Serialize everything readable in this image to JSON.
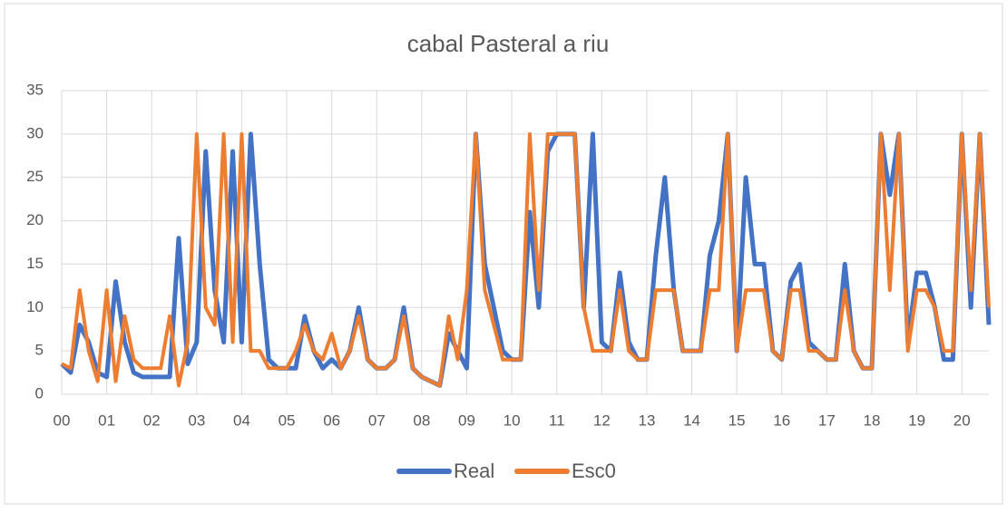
{
  "chart_data": {
    "type": "line",
    "title": "cabal Pasteral a riu",
    "x": [
      0,
      0.2,
      0.4,
      0.6,
      0.8,
      1,
      1.2,
      1.4,
      1.6,
      1.8,
      2,
      2.2,
      2.4,
      2.6,
      2.8,
      3,
      3.2,
      3.4,
      3.6,
      3.8,
      4,
      4.2,
      4.4,
      4.6,
      4.8,
      5,
      5.2,
      5.4,
      5.6,
      5.8,
      6,
      6.2,
      6.4,
      6.6,
      6.8,
      7,
      7.2,
      7.4,
      7.6,
      7.8,
      8,
      8.2,
      8.4,
      8.6,
      8.8,
      9,
      9.2,
      9.4,
      9.6,
      9.8,
      10,
      10.2,
      10.4,
      10.6,
      10.8,
      11,
      11.2,
      11.4,
      11.6,
      11.8,
      12,
      12.2,
      12.4,
      12.6,
      12.8,
      13,
      13.2,
      13.4,
      13.6,
      13.8,
      14,
      14.2,
      14.4,
      14.6,
      14.8,
      15,
      15.2,
      15.4,
      15.6,
      15.8,
      16,
      16.2,
      16.4,
      16.6,
      16.8,
      17,
      17.2,
      17.4,
      17.6,
      17.8,
      18,
      18.2,
      18.4,
      18.6,
      18.8,
      19,
      19.2,
      19.4,
      19.6,
      19.8,
      20,
      20.2,
      20.4,
      20.6
    ],
    "series": [
      {
        "name": "Real",
        "color": "#4472c4",
        "values": [
          3.5,
          2.5,
          8,
          6,
          2.5,
          2,
          13,
          6,
          2.5,
          2,
          2,
          2,
          2,
          18,
          3.5,
          6,
          28,
          12,
          6,
          28,
          6,
          30,
          15,
          4,
          3,
          3,
          3,
          9,
          5,
          3,
          4,
          3,
          5,
          10,
          4,
          3,
          3,
          4,
          10,
          3,
          2,
          1.5,
          1,
          7,
          5,
          3,
          30,
          15,
          10,
          5,
          4,
          4,
          21,
          10,
          28,
          30,
          30,
          30,
          10,
          30,
          6,
          5,
          14,
          6,
          4,
          4,
          16,
          25,
          12,
          5,
          5,
          5,
          16,
          20,
          30,
          5,
          25,
          15,
          15,
          5,
          4,
          13,
          15,
          6,
          5,
          4,
          4,
          15,
          5,
          3,
          3,
          30,
          23,
          30,
          6,
          14,
          14,
          10,
          4,
          4,
          30,
          10,
          30,
          8
        ]
      },
      {
        "name": "Esc0",
        "color": "#ed7d31",
        "values": [
          3.5,
          3,
          12,
          5,
          1.5,
          12,
          1.5,
          9,
          4,
          3,
          3,
          3,
          9,
          1,
          6,
          30,
          10,
          8,
          30,
          6,
          30,
          5,
          5,
          3,
          3,
          3,
          5,
          8,
          5,
          4,
          7,
          3,
          5,
          9,
          4,
          3,
          3,
          4,
          9,
          3,
          2,
          1.5,
          1,
          9,
          4,
          12,
          30,
          12,
          8,
          4,
          4,
          4,
          30,
          12,
          30,
          30,
          30,
          30,
          10,
          5,
          5,
          5,
          12,
          5,
          4,
          4,
          12,
          12,
          12,
          5,
          5,
          5,
          12,
          12,
          30,
          5,
          12,
          12,
          12,
          5,
          4,
          12,
          12,
          5,
          5,
          4,
          4,
          12,
          5,
          3,
          3,
          30,
          12,
          30,
          5,
          12,
          12,
          10,
          5,
          5,
          30,
          12,
          30,
          10
        ]
      }
    ],
    "xlim": [
      0,
      20.6
    ],
    "xticks": [
      {
        "value": 0,
        "label": "00"
      },
      {
        "value": 1,
        "label": "01"
      },
      {
        "value": 2,
        "label": "02"
      },
      {
        "value": 3,
        "label": "03"
      },
      {
        "value": 4,
        "label": "04"
      },
      {
        "value": 5,
        "label": "05"
      },
      {
        "value": 6,
        "label": "06"
      },
      {
        "value": 7,
        "label": "07"
      },
      {
        "value": 8,
        "label": "08"
      },
      {
        "value": 9,
        "label": "09"
      },
      10,
      11,
      12,
      13,
      14,
      15,
      16,
      17,
      18,
      19,
      20
    ],
    "ylim": [
      0,
      35
    ],
    "yticks": [
      0,
      5,
      10,
      15,
      20,
      25,
      30,
      35
    ],
    "grid": true
  }
}
